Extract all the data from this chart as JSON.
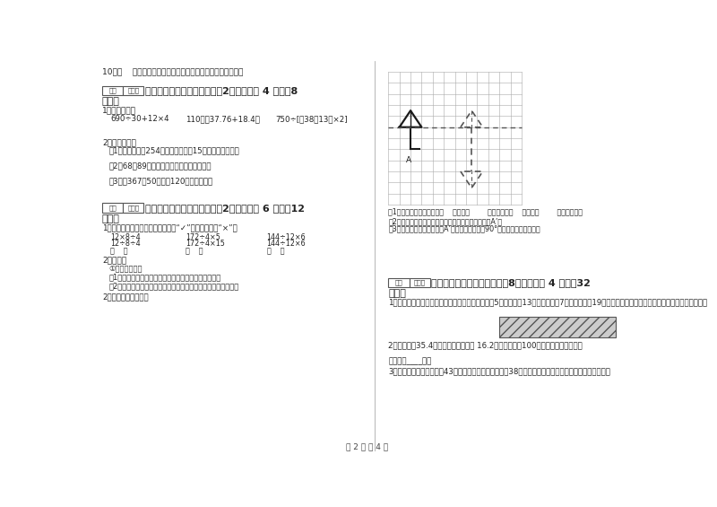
{
  "bg_color": "#ffffff",
  "footer_text": "第 2 页 共 4 页",
  "top_question": "10．（    ）从平行四边形的一个顶点可以向对边作无数条高。",
  "section4_q1_label": "1．混合运算。",
  "section4_q1_exprs": [
    "690÷30+12×4",
    "110－（37.76+18.4）",
    "750÷[（38－13）×2]"
  ],
  "section4_q2_label": "2．列式计算。",
  "section4_q2_items": [
    "（1）已知甲数是254，乙数是甲数的15倍，乙数是多少？",
    "（2）68与89的和乘以他们的差，积是多少？",
    "（3）比367的50倍，多120的数是多少？"
  ],
  "section5_q1_label": "1．下面每组算式运算顺序一样的画“✓”，不一样的画“×”。",
  "section5_q1_row0": [
    "12×8÷4",
    "172÷4×5",
    "144÷12×6"
  ],
  "section5_q1_row1": [
    "12÷8÷4",
    "172÷4×15",
    "144÷12×6"
  ],
  "section5_q1_row2": [
    "（    ）",
    "（    ）",
    "（    ）"
  ],
  "section5_q2_label": "2．操作。",
  "section5_q2_items": [
    "①按要求画图。",
    "（1）画出两个正方形组成的图形，使它有四条对称轴。",
    "（2）画出一个由梯形和长方形组成的图形，使它有一条对称轴。"
  ],
  "section5_q2_extra": "2．按要求画面答题。",
  "grid_caption1": "（1）现在的小伞是经过向（    ）平移（        ）格，再向（    ）平移（        ）格得来的。",
  "grid_caption2": "（2）沿虚线画出现在小伞的对称图形，伞柄末端标出A’。",
  "grid_caption3": "（3）把画出的小伞，围绕点A’按逆时针方向旋转90°，画出旋转后的图形。",
  "section6_q1": "1．张大爷在小河边围了一块梯形菜地。菜地上底长5米，下底长13米，两腰各长7米，他只用了19米长的篱笆。你知道他是怎么围的吗？请你画一画！",
  "section6_q2": "2．一把椅子35.4元，比一张桌子便宜 16.2元，学校买了100套桌椅，共用多少元？",
  "section6_q2_ans": "答：共用____元。",
  "section6_q3": "3．四名同学的平均体重是43千克，第五名同学的体重是38千克，求这五名同学的平均体重是多少千克？"
}
